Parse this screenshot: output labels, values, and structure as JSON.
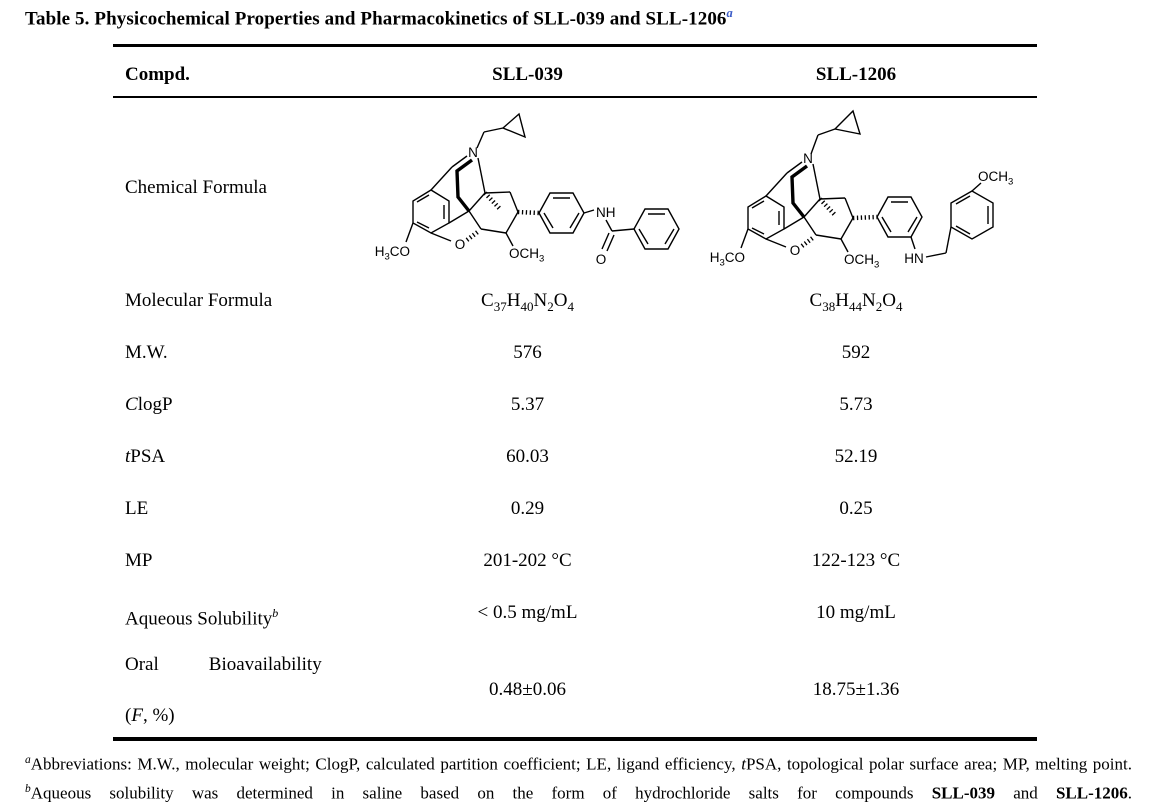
{
  "title": {
    "text": "Table 5. Physicochemical Properties and Pharmacokinetics of SLL-039 and SLL-1206",
    "superscript": "a",
    "superscript_color": "#3a5bc7"
  },
  "table": {
    "header": {
      "col1": "Compd.",
      "col2": "SLL-039",
      "col3": "SLL-1206"
    },
    "rows": {
      "chemical_formula": {
        "label": "Chemical Formula"
      },
      "molecular_formula": {
        "label": "Molecular Formula",
        "sll039_parts": [
          [
            "C",
            false
          ],
          [
            "37",
            true
          ],
          [
            "H",
            false
          ],
          [
            "40",
            true
          ],
          [
            "N",
            false
          ],
          [
            "2",
            true
          ],
          [
            "O",
            false
          ],
          [
            "4",
            true
          ]
        ],
        "sll1206_parts": [
          [
            "C",
            false
          ],
          [
            "38",
            true
          ],
          [
            "H",
            false
          ],
          [
            "44",
            true
          ],
          [
            "N",
            false
          ],
          [
            "2",
            true
          ],
          [
            "O",
            false
          ],
          [
            "4",
            true
          ]
        ]
      },
      "mw": {
        "label": "M.W.",
        "sll039": "576",
        "sll1206": "592"
      },
      "clogp": {
        "label_italic": "C",
        "label_rest": "logP",
        "sll039": "5.37",
        "sll1206": "5.73"
      },
      "tpsa": {
        "label_italic": "t",
        "label_rest": "PSA",
        "sll039": "60.03",
        "sll1206": "52.19"
      },
      "le": {
        "label": "LE",
        "sll039": "0.29",
        "sll1206": "0.25"
      },
      "mp": {
        "label": "MP",
        "sll039": "201-202 °C",
        "sll1206": "122-123 °C"
      },
      "solubility": {
        "label": "Aqueous Solubility",
        "label_superscript": "b",
        "sll039": "< 0.5 mg/mL",
        "sll1206": "10 mg/mL"
      },
      "bioavailability": {
        "label_word1": "Oral",
        "label_word2": "Bioavailability",
        "label_line2_open": "(",
        "label_line2_italic": "F",
        "label_line2_rest": ", %)",
        "sll039": "0.48±0.06",
        "sll1206": "18.75±1.36"
      }
    }
  },
  "structures": {
    "sll039": {
      "n": "N",
      "h3co_parts": [
        [
          "H",
          false
        ],
        [
          "3",
          true
        ],
        [
          "CO",
          false
        ]
      ],
      "o_furan": "O",
      "och3_parts": [
        [
          "OCH",
          false
        ],
        [
          "3",
          true
        ]
      ],
      "nh": "NH",
      "o_carbonyl": "O"
    },
    "sll1206": {
      "n": "N",
      "h3co_parts": [
        [
          "H",
          false
        ],
        [
          "3",
          true
        ],
        [
          "CO",
          false
        ]
      ],
      "o_furan": "O",
      "och3_bottom_parts": [
        [
          "OCH",
          false
        ],
        [
          "3",
          true
        ]
      ],
      "hn": "HN",
      "och3_top_parts": [
        [
          "OCH",
          false
        ],
        [
          "3",
          true
        ]
      ]
    }
  },
  "footnote": {
    "sup_a": "a",
    "part1": "Abbreviations: M.W., molecular weight; ClogP, calculated partition coefficient; LE, ligand efficiency, ",
    "t_italic": "t",
    "part2": "PSA, topological polar surface area; MP, melting point. ",
    "sup_b": "b",
    "part3": "Aqueous solubility was determined in saline based on the form of hydrochloride salts for compounds ",
    "bold1": "SLL-039",
    "part4": " and ",
    "bold2": "SLL-1206",
    "part5": "."
  }
}
